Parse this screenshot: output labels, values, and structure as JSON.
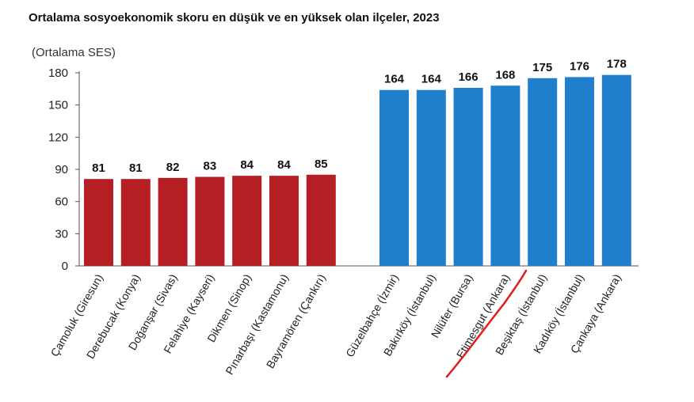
{
  "chart_data": {
    "type": "bar",
    "title": "Ortalama sosyoekonomik skoru en düşük ve en yüksek olan ilçeler, 2023",
    "ylabel": "(Ortalama SES)",
    "ylim": [
      0,
      180
    ],
    "yticks": [
      0,
      30,
      60,
      90,
      120,
      150,
      180
    ],
    "grid": false,
    "colors": {
      "lowest": "#b51f24",
      "highest": "#1f7fcc",
      "highlight": "#e31b1b"
    },
    "groups": [
      {
        "color_key": "lowest",
        "categories": [
          "Çamoluk (Giresun)",
          "Derebucak (Konya)",
          "Doğanşar (Sivas)",
          "Felahiye (Kayseri)",
          "Dikmen (Sinop)",
          "Pınarbaşı (Kastamonu)",
          "Bayramören (Çankırı)"
        ],
        "values": [
          81,
          81,
          82,
          83,
          84,
          84,
          85
        ]
      },
      {
        "color_key": "highest",
        "categories": [
          "Güzelbahçe (İzmir)",
          "Bakırköy (İstanbul)",
          "Nilüfer (Bursa)",
          "Etimesgut (Ankara)",
          "Beşiktaş (İstanbul)",
          "Kadıköy (İstanbul)",
          "Çankaya (Ankara)"
        ],
        "values": [
          164,
          164,
          166,
          168,
          175,
          176,
          178
        ]
      }
    ],
    "annotation": {
      "type": "hand-drawn-underline",
      "target": "Etimesgut (Ankara)"
    }
  }
}
